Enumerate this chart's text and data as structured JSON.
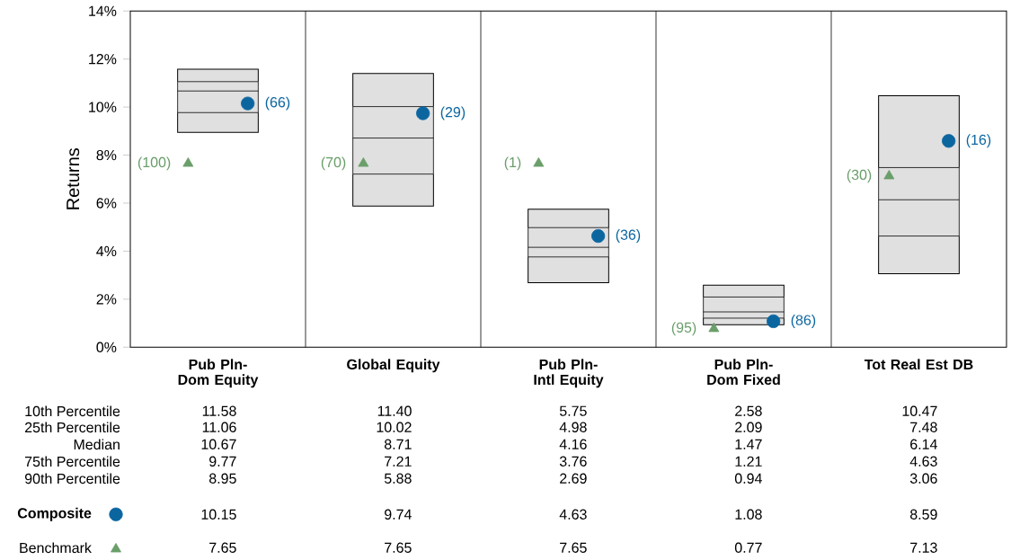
{
  "chart_data": {
    "type": "box",
    "ylabel": "Returns",
    "categories": [
      "Pub Pln- Dom Equity",
      "Global Equity",
      "Pub Pln- Intl Equity",
      "Pub Pln- Dom Fixed",
      "Tot Real Est DB"
    ],
    "boxes": [
      {
        "low": 8.95,
        "q1": 9.77,
        "median": 10.67,
        "q3": 11.06,
        "high": 11.58
      },
      {
        "low": 5.88,
        "q1": 7.21,
        "median": 8.71,
        "q3": 10.02,
        "high": 11.4
      },
      {
        "low": 2.69,
        "q1": 3.76,
        "median": 4.16,
        "q3": 4.98,
        "high": 5.75
      },
      {
        "low": 0.94,
        "q1": 1.21,
        "median": 1.47,
        "q3": 2.09,
        "high": 2.58
      },
      {
        "low": 3.06,
        "q1": 4.63,
        "median": 6.14,
        "q3": 7.48,
        "high": 10.47
      }
    ],
    "series": [
      {
        "name": "Composite",
        "type": "scatter",
        "marker": "circle",
        "color": "#0b66a0",
        "x": [
          "Pub Pln- Dom Equity",
          "Global Equity",
          "Pub Pln- Intl Equity",
          "Pub Pln- Dom Fixed",
          "Tot Real Est DB"
        ],
        "values": [
          10.15,
          9.74,
          4.63,
          1.08,
          8.59
        ]
      },
      {
        "name": "Benchmark",
        "type": "scatter",
        "marker": "triangle",
        "color": "#6a9e6a",
        "x": [
          "Pub Pln- Dom Equity",
          "Global Equity",
          "Pub Pln- Intl Equity",
          "Pub Pln- Dom Fixed",
          "Tot Real Est DB"
        ],
        "values": [
          7.65,
          7.65,
          7.65,
          0.77,
          7.13
        ]
      }
    ],
    "ylim": [
      0,
      14
    ],
    "yticks": [
      {
        "value": 0,
        "label": "0%"
      },
      {
        "value": 2,
        "label": "2%"
      },
      {
        "value": 4,
        "label": "4%"
      },
      {
        "value": 6,
        "label": "6%"
      },
      {
        "value": 8,
        "label": "8%"
      },
      {
        "value": 10,
        "label": "10%"
      },
      {
        "value": 12,
        "label": "12%"
      },
      {
        "value": 14,
        "label": "14%"
      }
    ],
    "data_labels": true,
    "legend": "bottom",
    "annotations": [
      "10th Percentile",
      "25th Percentile",
      "Median",
      "75th Percentile",
      "90th Percentile",
      "11.58",
      "11.40",
      "5.75",
      "2.58",
      "10.47",
      "11.06",
      "10.02",
      "4.98",
      "2.09",
      "7.48",
      "10.67",
      "8.71",
      "4.16",
      "1.47",
      "6.14",
      "9.77",
      "7.21",
      "3.76",
      "1.21",
      "4.63",
      "8.95",
      "5.88",
      "2.69",
      "0.94",
      "3.06",
      "(66)",
      "(29)",
      "(36)",
      "(86)",
      "(16)",
      "(100)",
      "(70)",
      "(1)",
      "(95)",
      "(30)"
    ]
  }
}
